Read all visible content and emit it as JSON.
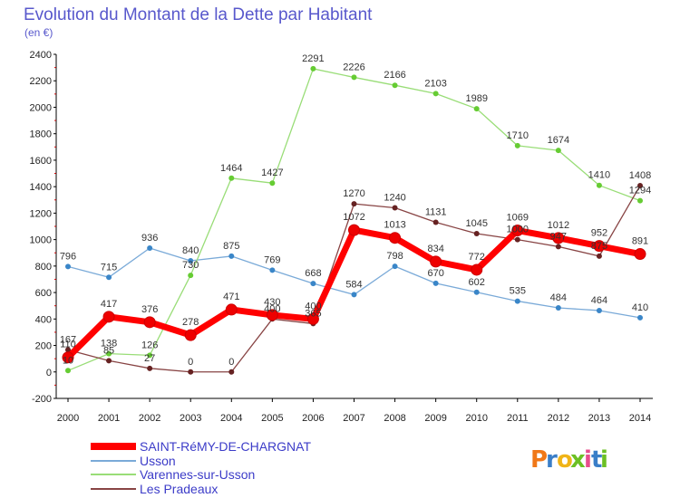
{
  "chart_data": {
    "type": "line",
    "title": "Evolution du Montant de la Dette par Habitant",
    "subtitle": "(en €)",
    "x": [
      "2000",
      "2001",
      "2002",
      "2003",
      "2004",
      "2005",
      "2006",
      "2007",
      "2008",
      "2009",
      "2010",
      "2011",
      "2012",
      "2013",
      "2014"
    ],
    "ylim": [
      -200,
      2400
    ],
    "yticks": [
      -200,
      0,
      200,
      400,
      600,
      800,
      1000,
      1200,
      1400,
      1600,
      1800,
      2000,
      2200,
      2400
    ],
    "grid": false,
    "legend_position": "bottom-left",
    "series": [
      {
        "name": "SAINT-RéMY-DE-CHARGNAT",
        "color": "#ff0000",
        "marker_color": "#ee0000",
        "values": [
          110,
          417,
          376,
          278,
          471,
          430,
          400,
          1072,
          1013,
          834,
          772,
          1069,
          1012,
          952,
          891
        ],
        "labels": [
          "110",
          "417",
          "376",
          "278",
          "471",
          "430",
          "400",
          "1072",
          "1013",
          "834",
          "772",
          "1069",
          "1012",
          "952",
          "891"
        ]
      },
      {
        "name": "Usson",
        "color": "#7aaad8",
        "marker_color": "#3a86c8",
        "values": [
          796,
          715,
          936,
          840,
          875,
          769,
          668,
          584,
          798,
          670,
          602,
          535,
          484,
          464,
          410
        ],
        "labels": [
          "796",
          "715",
          "936",
          "840",
          "875",
          "769",
          "668",
          "584",
          "798",
          "670",
          "602",
          "535",
          "484",
          "464",
          "410"
        ]
      },
      {
        "name": "Varennes-sur-Usson",
        "color": "#99dd77",
        "marker_color": "#66cc33",
        "values": [
          10,
          138,
          126,
          730,
          1464,
          1427,
          2291,
          2226,
          2166,
          2103,
          1989,
          1710,
          1674,
          1410,
          1294
        ],
        "labels": [
          "10",
          "138",
          "126",
          "730",
          "1464",
          "1427",
          "2291",
          "2226",
          "2166",
          "2103",
          "1989",
          "1710",
          "1674",
          "1410",
          "1294"
        ]
      },
      {
        "name": "Les Pradeaux",
        "color": "#884444",
        "marker_color": "#662222",
        "values": [
          167,
          85,
          27,
          0,
          0,
          400,
          365,
          1270,
          1240,
          1131,
          1045,
          1000,
          947,
          875,
          1408
        ],
        "labels": [
          "167",
          "85",
          "27",
          "0",
          "0",
          "400",
          "365",
          "1270",
          "1240",
          "1131",
          "1045",
          "1000",
          "947",
          "875",
          "1408"
        ]
      }
    ]
  },
  "logo": {
    "text": "Proxiti",
    "colors": [
      "#f07818",
      "#3a7ec8",
      "#f0b418",
      "#6cc024",
      "#e84c8c",
      "#3a7ec8",
      "#6cc024"
    ]
  }
}
